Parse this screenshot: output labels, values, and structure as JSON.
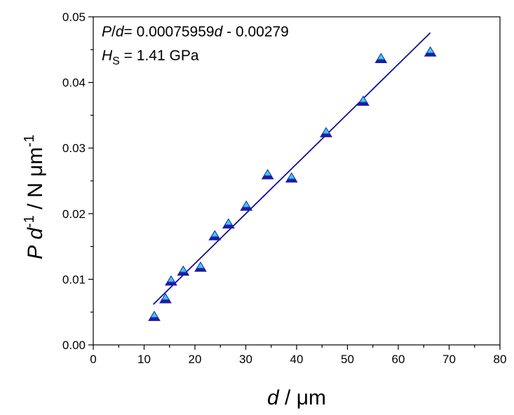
{
  "chart_data": {
    "type": "scatter",
    "title": "",
    "x_axis": {
      "label_var": "d",
      "label_sep": " / ",
      "label_unit": "μm",
      "range": [
        0,
        80
      ],
      "ticks": [
        0,
        10,
        20,
        30,
        40,
        50,
        60,
        70,
        80
      ],
      "tick_labels": [
        "0",
        "10",
        "20",
        "30",
        "40",
        "50",
        "60",
        "70",
        "80"
      ]
    },
    "y_axis": {
      "label_var1": "P",
      "label_var2": "d",
      "label_exp1": "-1",
      "label_sep": "/",
      "label_unit_n": "N",
      "label_unit_mu": "μm",
      "label_exp2": "-1",
      "range": [
        0,
        0.05
      ],
      "ticks": [
        0,
        0.01,
        0.02,
        0.03,
        0.04,
        0.05
      ],
      "tick_labels": [
        "0.00",
        "0.01",
        "0.02",
        "0.03",
        "0.04",
        "0.05"
      ]
    },
    "grid": false,
    "annotations": {
      "fit": {
        "var_p": "P",
        "slash": "/",
        "var_d": "d",
        "eq": "= 0.00075959",
        "var_d2": "d",
        "tail": " - 0.00279"
      },
      "hardness": {
        "var_h": "H",
        "sub": "S",
        "value": " = 1.41 GPa"
      }
    },
    "series": [
      {
        "marker": "triangle",
        "color_top": "#39d0f0",
        "color_bottom": "#1c1ca8",
        "x": [
          12.0,
          14.2,
          15.3,
          17.7,
          21.1,
          23.9,
          26.6,
          30.1,
          34.3,
          39.0,
          45.8,
          53.1,
          56.6,
          66.3
        ],
        "y": [
          0.0043,
          0.007,
          0.0097,
          0.0112,
          0.0118,
          0.0166,
          0.0184,
          0.0211,
          0.0259,
          0.0254,
          0.0323,
          0.0371,
          0.0436,
          0.0446
        ]
      }
    ],
    "fit_line": {
      "slope": 0.00075959,
      "intercept": -0.00279,
      "x_range": [
        11.8,
        66.3
      ],
      "color": "#10109a"
    }
  }
}
